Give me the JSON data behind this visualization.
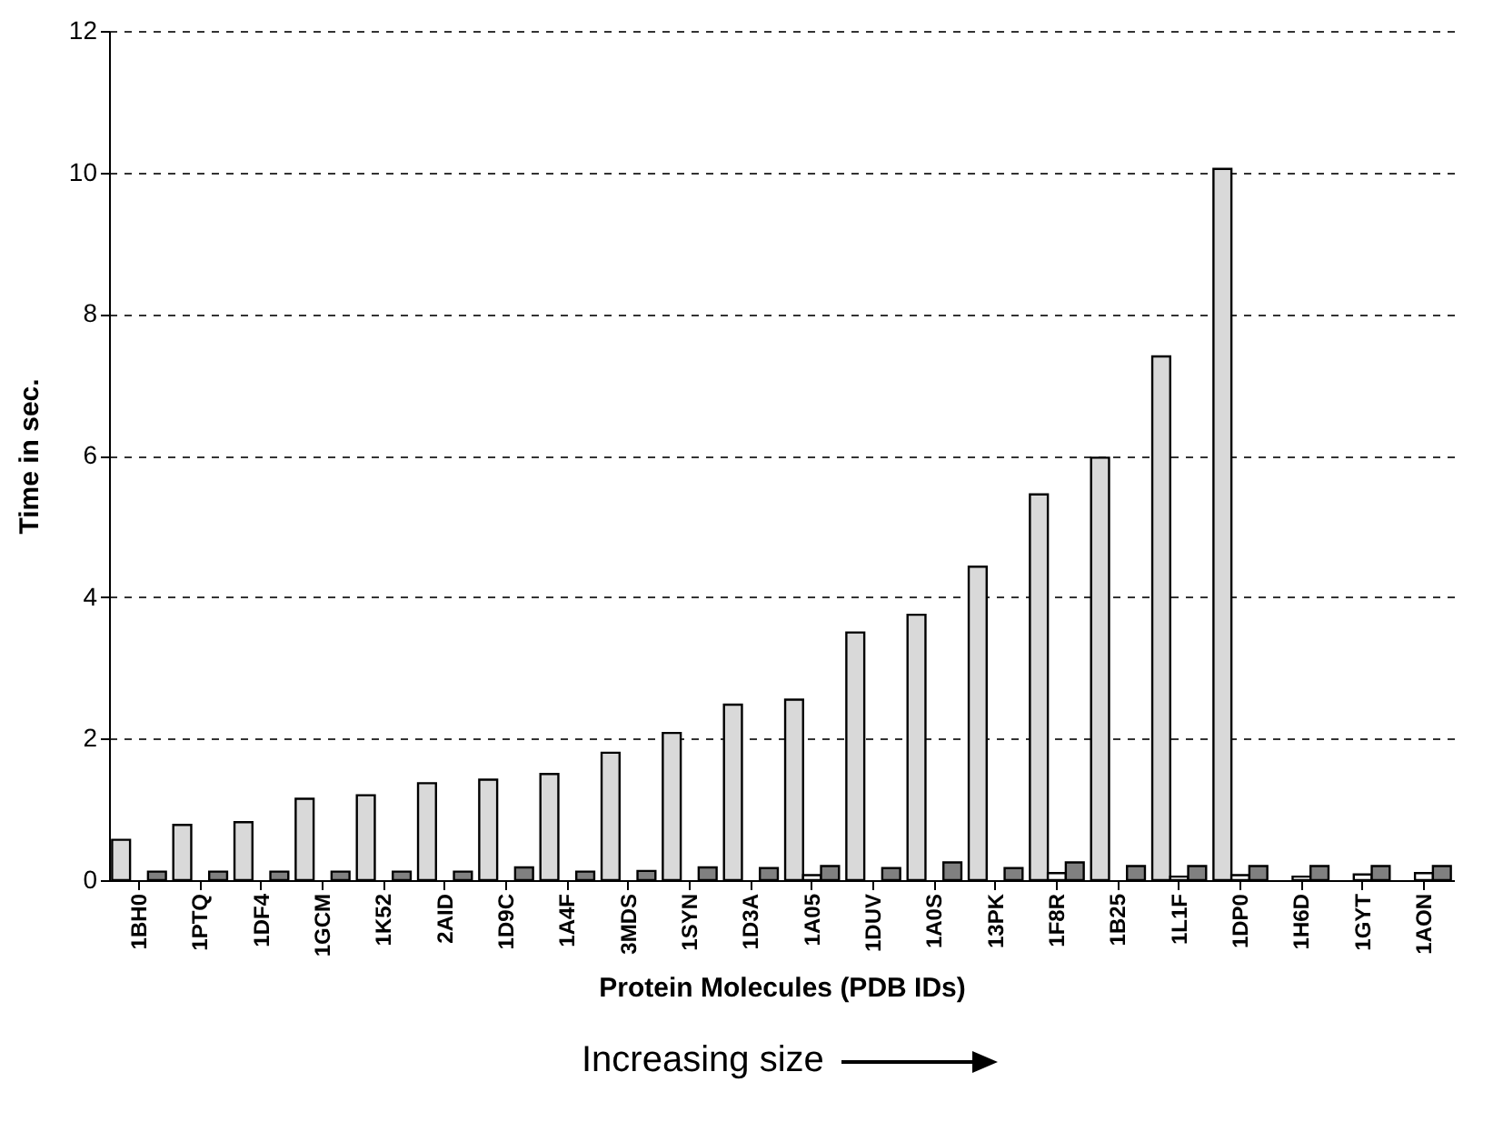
{
  "chart_data": {
    "type": "bar",
    "xlabel": "Protein Molecules (PDB IDs)",
    "ylabel": "Time in sec.",
    "annotations": [
      "Increasing size"
    ],
    "categories": [
      "1BH0",
      "1PTQ",
      "1DF4",
      "1GCM",
      "1K52",
      "2AID",
      "1D9C",
      "1A4F",
      "3MDS",
      "1SYN",
      "1D3A",
      "1A05",
      "1DUV",
      "1A0S",
      "13PK",
      "1F8R",
      "1B25",
      "1L1F",
      "1DP0",
      "1H6D",
      "1GYT",
      "1AON"
    ],
    "series": [
      {
        "color": "#d9d9d9",
        "values": [
          0.57,
          0.78,
          0.82,
          1.15,
          1.2,
          1.37,
          1.42,
          1.5,
          1.8,
          2.08,
          2.48,
          2.55,
          3.5,
          3.75,
          4.43,
          5.45,
          5.97,
          7.4,
          10.05,
          null,
          null,
          null
        ]
      },
      {
        "color": "#ffffff",
        "values": [
          null,
          null,
          null,
          null,
          null,
          null,
          null,
          null,
          null,
          null,
          null,
          0.07,
          null,
          null,
          null,
          0.1,
          null,
          0.05,
          0.07,
          0.05,
          0.08,
          0.1
        ]
      },
      {
        "color": "#808080",
        "values": [
          0.12,
          0.12,
          0.12,
          0.12,
          0.12,
          0.12,
          0.18,
          0.12,
          0.13,
          0.18,
          0.17,
          0.2,
          0.17,
          0.25,
          0.17,
          0.25,
          0.2,
          0.2,
          0.2,
          0.2,
          0.2,
          0.2
        ]
      }
    ],
    "ylim": [
      0,
      12
    ],
    "yticks": [
      0,
      2,
      4,
      6,
      8,
      10,
      12
    ],
    "grid": "y",
    "legend": false
  }
}
